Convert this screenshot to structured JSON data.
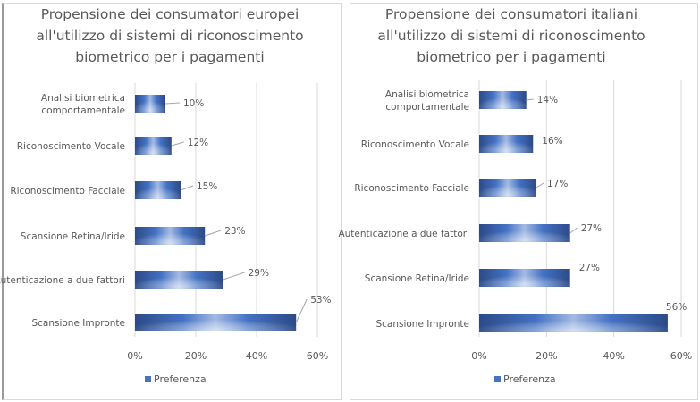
{
  "chart_data": [
    {
      "type": "bar",
      "orientation": "horizontal",
      "title": "Propensione dei consumatori europei all'utilizzo di sistemi di riconoscimento biometrico per i pagamenti",
      "title_lines": [
        "Propensione dei consumatori europei",
        "all'utilizzo di sistemi di riconoscimento",
        "biometrico per i pagamenti"
      ],
      "categories": [
        "Analisi biometrica comportamentale",
        "Riconoscimento Vocale",
        "Riconoscimento Facciale",
        "Scansione Retina/Iride",
        "Autenticazione a due fattori",
        "Scansione Impronte"
      ],
      "category_lines": [
        [
          "Analisi biometrica",
          "comportamentale"
        ],
        [
          "Riconoscimento Vocale"
        ],
        [
          "Riconoscimento Facciale"
        ],
        [
          "Scansione Retina/Iride"
        ],
        [
          "Autenticazione a due fattori"
        ],
        [
          "Scansione Impronte"
        ]
      ],
      "series": [
        {
          "name": "Preferenza",
          "values": [
            10,
            12,
            15,
            23,
            29,
            53
          ]
        }
      ],
      "data_labels": [
        "10%",
        "12%",
        "15%",
        "23%",
        "29%",
        "53%"
      ],
      "xlim": [
        0,
        60
      ],
      "x_ticks": [
        0,
        20,
        40,
        60
      ],
      "x_tick_labels": [
        "0%",
        "20%",
        "40%",
        "60%"
      ],
      "xlabel": "",
      "ylabel": "",
      "grid": true,
      "legend": {
        "position": "bottom",
        "entries": [
          "Preferenza"
        ]
      }
    },
    {
      "type": "bar",
      "orientation": "horizontal",
      "title": "Propensione dei consumatori italiani all'utilizzo di sistemi di riconoscimento biometrico per i pagamenti",
      "title_lines": [
        "Propensione dei consumatori italiani",
        "all'utilizzo di sistemi di riconoscimento",
        "biometrico per i pagamenti"
      ],
      "categories": [
        "Analisi biometrica comportamentale",
        "Riconoscimento Vocale",
        "Riconoscimento Facciale",
        "Autenticazione a due fattori",
        "Scansione Retina/Iride",
        "Scansione Impronte"
      ],
      "category_lines": [
        [
          "Analisi biometrica",
          "comportamentale"
        ],
        [
          "Riconoscimento Vocale"
        ],
        [
          "Riconoscimento Facciale"
        ],
        [
          "Autenticazione a due fattori"
        ],
        [
          "Scansione Retina/Iride"
        ],
        [
          "Scansione Impronte"
        ]
      ],
      "series": [
        {
          "name": "Preferenza",
          "values": [
            14,
            16,
            17,
            27,
            27,
            56
          ]
        }
      ],
      "data_labels": [
        "14%",
        "16%",
        "17%",
        "27%",
        "27%",
        "56%"
      ],
      "xlim": [
        0,
        60
      ],
      "x_ticks": [
        0,
        20,
        40,
        60
      ],
      "x_tick_labels": [
        "0%",
        "20%",
        "40%",
        "60%"
      ],
      "xlabel": "",
      "ylabel": "",
      "grid": true,
      "legend": {
        "position": "bottom",
        "entries": [
          "Preferenza"
        ]
      }
    }
  ],
  "colors": {
    "bar_dark": "#2c4a86",
    "bar_mid": "#4472c4",
    "bar_light": "#a9bfe6",
    "grid": "#d9d9d9",
    "text": "#595959",
    "leader": "#a6a6a6"
  }
}
